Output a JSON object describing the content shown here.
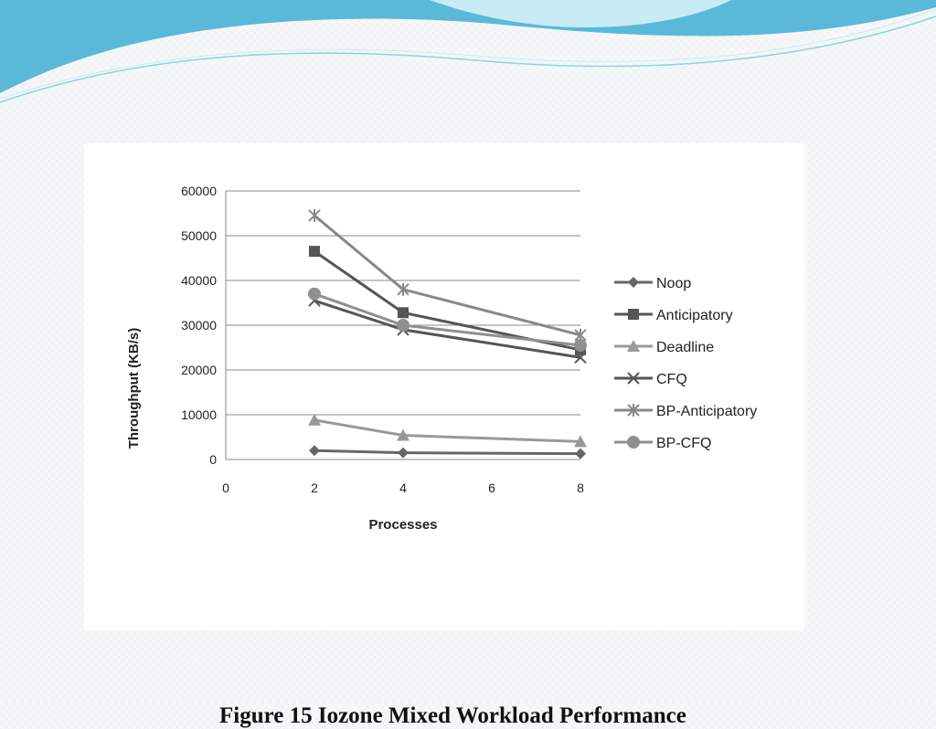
{
  "slide": {
    "caption": "Figure 15 Iozone Mixed Workload Performance"
  },
  "theme": {
    "banner_colors": [
      "#5ab9d8",
      "#8ad3ea",
      "#c7ecf6"
    ]
  },
  "chart_data": {
    "type": "line",
    "title": "",
    "xlabel": "Processes",
    "ylabel": "Throughput (KB/s)",
    "xlim": [
      0,
      8
    ],
    "ylim": [
      0,
      60000
    ],
    "xticks": [
      0,
      2,
      4,
      6,
      8
    ],
    "yticks": [
      0,
      10000,
      20000,
      30000,
      40000,
      50000,
      60000
    ],
    "grid": "horizontal",
    "legend_position": "right",
    "x": [
      2,
      4,
      8
    ],
    "series": [
      {
        "name": "Noop",
        "values": [
          2000,
          1500,
          1300
        ],
        "marker": "diamond",
        "color": "#666666"
      },
      {
        "name": "Anticipatory",
        "values": [
          46500,
          32800,
          24500
        ],
        "marker": "square",
        "color": "#555555"
      },
      {
        "name": "Deadline",
        "values": [
          8800,
          5400,
          4000
        ],
        "marker": "triangle",
        "color": "#999999"
      },
      {
        "name": "CFQ",
        "values": [
          35500,
          29000,
          22800
        ],
        "marker": "x",
        "color": "#555555"
      },
      {
        "name": "BP-Anticipatory",
        "values": [
          54500,
          38000,
          27800
        ],
        "marker": "star",
        "color": "#888888"
      },
      {
        "name": "BP-CFQ",
        "values": [
          37000,
          30000,
          25500
        ],
        "marker": "circle",
        "color": "#8f8f8f"
      }
    ]
  }
}
